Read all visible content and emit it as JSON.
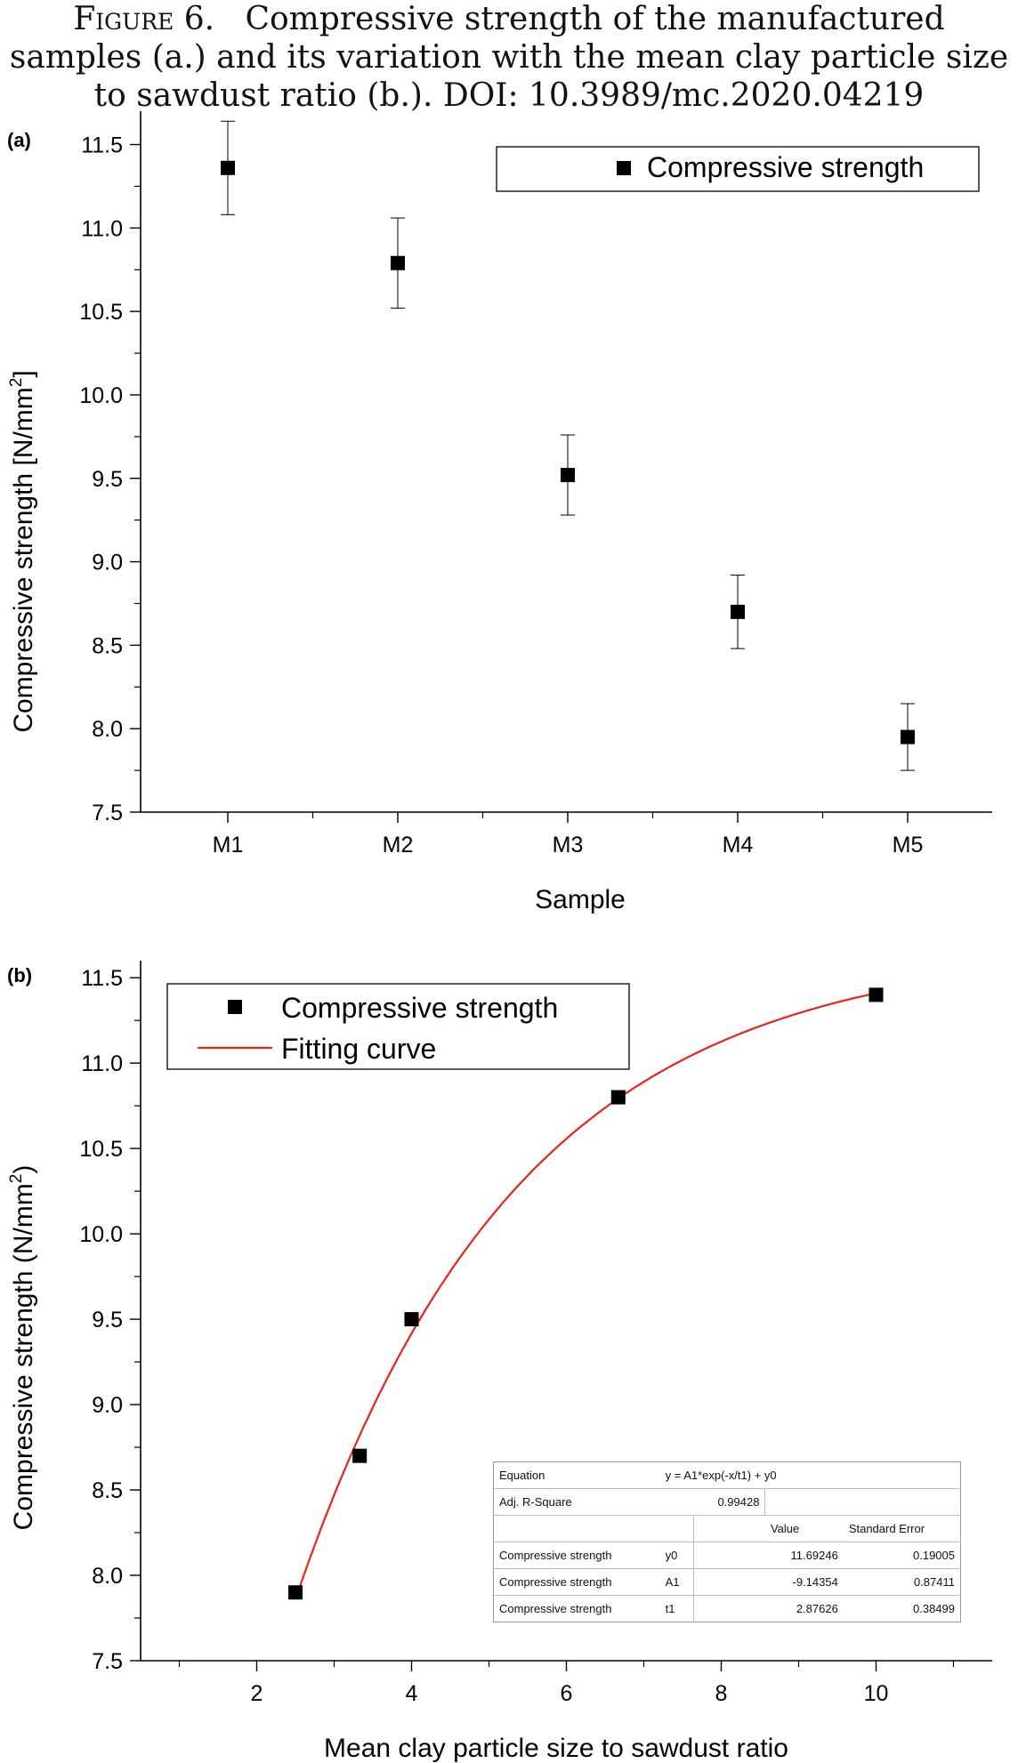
{
  "caption": {
    "lead": "Figure 6.",
    "line1_rest": "Compressive strength of the manufactured",
    "line2": "samples (a.) and its variation with the mean clay particle size",
    "line3": "to sawdust ratio (b.). DOI: 10.3989/mc.2020.04219"
  },
  "chart_data": [
    {
      "panel_label": "(a)",
      "type": "scatter",
      "categories": [
        "M1",
        "M2",
        "M3",
        "M4",
        "M5"
      ],
      "series": [
        {
          "name": "Compressive strength",
          "values": [
            11.36,
            10.79,
            9.52,
            8.7,
            7.95
          ],
          "error": [
            0.28,
            0.27,
            0.24,
            0.22,
            0.2
          ],
          "color": "#000000",
          "marker": "square"
        }
      ],
      "xlabel": "Sample",
      "ylabel": "Compressive strength [N/mm",
      "ylabel_sup": "2",
      "ylabel_end": "]",
      "ylim": [
        7.5,
        11.7
      ],
      "yticks": [
        "7.5",
        "8.0",
        "8.5",
        "9.0",
        "9.5",
        "10.0",
        "10.5",
        "11.0",
        "11.5"
      ],
      "legend": "top-right",
      "grid": false
    },
    {
      "panel_label": "(b)",
      "type": "scatter",
      "series": [
        {
          "name": "Compressive strength",
          "x": [
            2.5,
            3.33,
            4.0,
            6.67,
            10.0
          ],
          "y": [
            7.9,
            8.7,
            9.5,
            10.8,
            11.4
          ],
          "color": "#000000",
          "marker": "square"
        },
        {
          "name": "Fitting curve",
          "type": "line",
          "color": "#e8231a",
          "model": {
            "y0": 11.69246,
            "A1": -9.14354,
            "t1": 2.87626
          },
          "x_range": [
            2.5,
            10.0
          ]
        }
      ],
      "xlabel": "Mean clay particle size to sawdust ratio",
      "ylabel": "Compressive strength (N/mm",
      "ylabel_sup": "2",
      "ylabel_end": ")",
      "xlim": [
        0.5,
        11.5
      ],
      "xticks": [
        "2",
        "4",
        "6",
        "8",
        "10"
      ],
      "ylim": [
        7.5,
        11.6
      ],
      "yticks": [
        "7.5",
        "8.0",
        "8.5",
        "9.0",
        "9.5",
        "10.0",
        "10.5",
        "11.0",
        "11.5"
      ],
      "legend": "top-left",
      "grid": false,
      "fit_table": {
        "equation_label": "Equation",
        "equation": "y = A1*exp(-x/t1) + y0",
        "r2_label": "Adj. R-Square",
        "r2_value": "0.99428",
        "col_value": "Value",
        "col_error": "Standard Error",
        "rows": [
          {
            "name": "Compressive strength",
            "param": "y0",
            "value": "11.69246",
            "error": "0.19005"
          },
          {
            "name": "Compressive strength",
            "param": "A1",
            "value": "-9.14354",
            "error": "0.87411"
          },
          {
            "name": "Compressive strength",
            "param": "t1",
            "value": "2.87626",
            "error": "0.38499"
          }
        ]
      }
    }
  ]
}
